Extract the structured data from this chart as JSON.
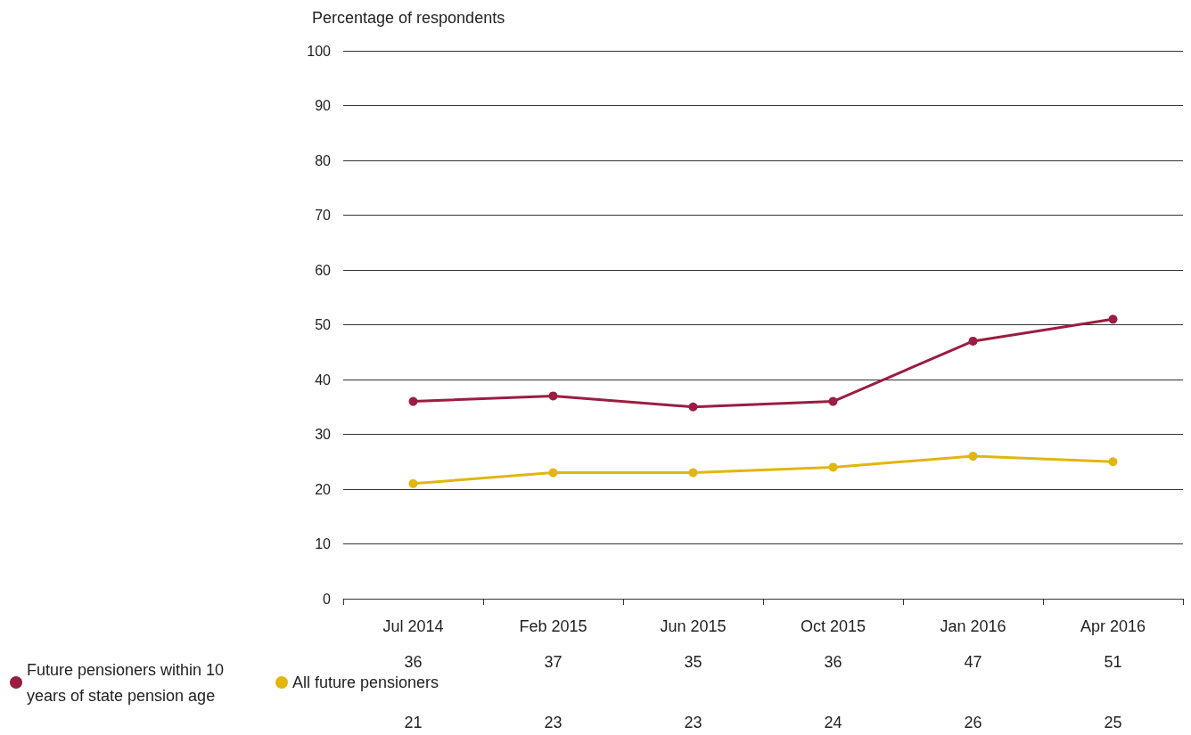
{
  "chart_data": {
    "type": "line",
    "ylabel": "Percentage of respondents",
    "categories": [
      "Jul 2014",
      "Feb 2015",
      "Jun 2015",
      "Oct 2015",
      "Jan 2016",
      "Apr 2016"
    ],
    "series": [
      {
        "name": "Future pensioners within 10 years of state pension age",
        "color": "#9b1d42",
        "values": [
          36,
          37,
          35,
          36,
          47,
          51
        ]
      },
      {
        "name": "All future pensioners",
        "color": "#e1b60f",
        "values": [
          21,
          23,
          23,
          24,
          26,
          25
        ]
      }
    ],
    "ylim": [
      0,
      100
    ],
    "yticks": [
      0,
      10,
      20,
      30,
      40,
      50,
      60,
      70,
      80,
      90,
      100
    ],
    "grid": "y",
    "legend": "bottom left",
    "marker": "circle",
    "line_style": "solid",
    "data_labels": true
  }
}
